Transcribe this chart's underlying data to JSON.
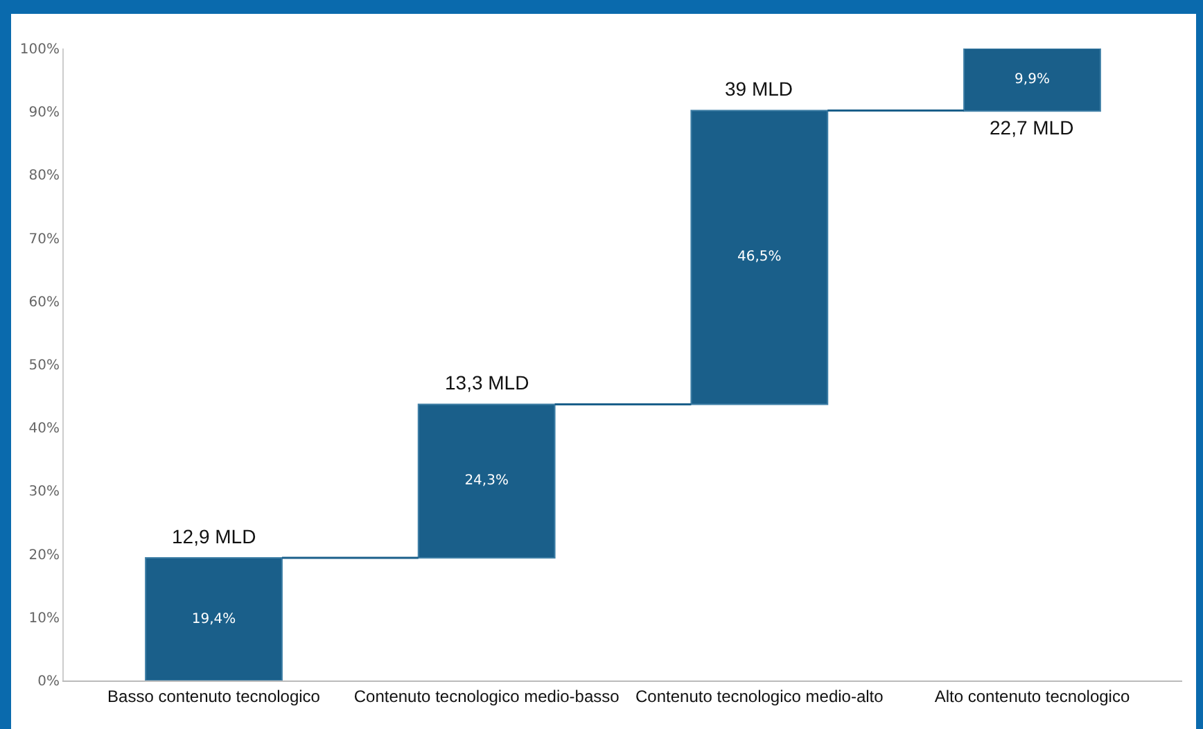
{
  "chart_data": {
    "type": "bar",
    "categories": [
      "Basso contenuto tecnologico",
      "Contenuto tecnologico medio-basso",
      "Contenuto tecnologico medio-alto",
      "Alto contenuto tecnologico"
    ],
    "values": [
      19.4,
      24.3,
      46.5,
      9.9
    ],
    "base": [
      0,
      19.4,
      43.7,
      90.1
    ],
    "color": "#1a5f8a",
    "value_labels": [
      "19,4%",
      "24,3%",
      "46,5%",
      "9,9%"
    ],
    "ylim": [
      0,
      100
    ],
    "yticks": [
      {
        "value": 0,
        "label": "0%"
      },
      {
        "value": 10,
        "label": "10%"
      },
      {
        "value": 20,
        "label": "20%"
      },
      {
        "value": 30,
        "label": "30%"
      },
      {
        "value": 40,
        "label": "40%"
      },
      {
        "value": 50,
        "label": "50%"
      },
      {
        "value": 60,
        "label": "60%"
      },
      {
        "value": 70,
        "label": "70%"
      },
      {
        "value": 80,
        "label": "80%"
      },
      {
        "value": 90,
        "label": "90%"
      },
      {
        "value": 100,
        "label": "100%"
      }
    ],
    "annotations": [
      "12,9 MLD",
      "13,3 MLD",
      "39 MLD",
      "22,7 MLD"
    ],
    "grid": false
  }
}
